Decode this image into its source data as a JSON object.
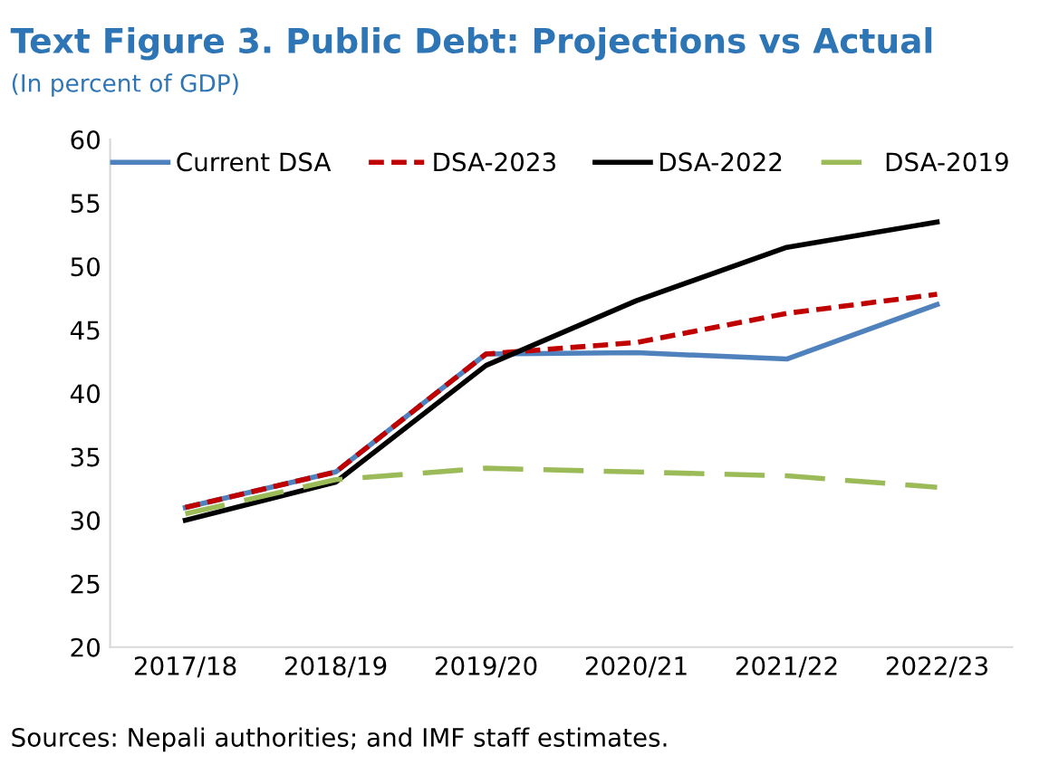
{
  "chart_data": {
    "type": "line",
    "title": "Text Figure 3. Public Debt: Projections vs Actual",
    "subtitle": "(In percent of GDP)",
    "categories": [
      "2017/18",
      "2018/19",
      "2019/20",
      "2020/21",
      "2021/22",
      "2022/23"
    ],
    "series": [
      {
        "name": "Current DSA",
        "color": "#4f81bd",
        "line_style": "solid",
        "values": [
          31.0,
          33.8,
          43.1,
          43.2,
          42.7,
          47.0
        ]
      },
      {
        "name": "DSA-2023",
        "color": "#c00000",
        "line_style": "dotted",
        "values": [
          31.0,
          33.8,
          43.1,
          44.0,
          46.3,
          47.8
        ]
      },
      {
        "name": "DSA-2022",
        "color": "#000000",
        "line_style": "solid",
        "values": [
          30.0,
          33.0,
          42.2,
          47.3,
          51.5,
          53.5
        ]
      },
      {
        "name": "DSA-2019",
        "color": "#9bbb59",
        "line_style": "dashed",
        "values": [
          30.5,
          33.2,
          34.1,
          33.8,
          33.5,
          32.6
        ]
      }
    ],
    "ylim": [
      20,
      60
    ],
    "yticks": [
      20,
      25,
      30,
      35,
      40,
      45,
      50,
      55,
      60
    ],
    "grid": false,
    "legend": "top",
    "marker": "none",
    "annotations": [
      "Sources: Nepali authorities; and IMF staff estimates."
    ]
  }
}
